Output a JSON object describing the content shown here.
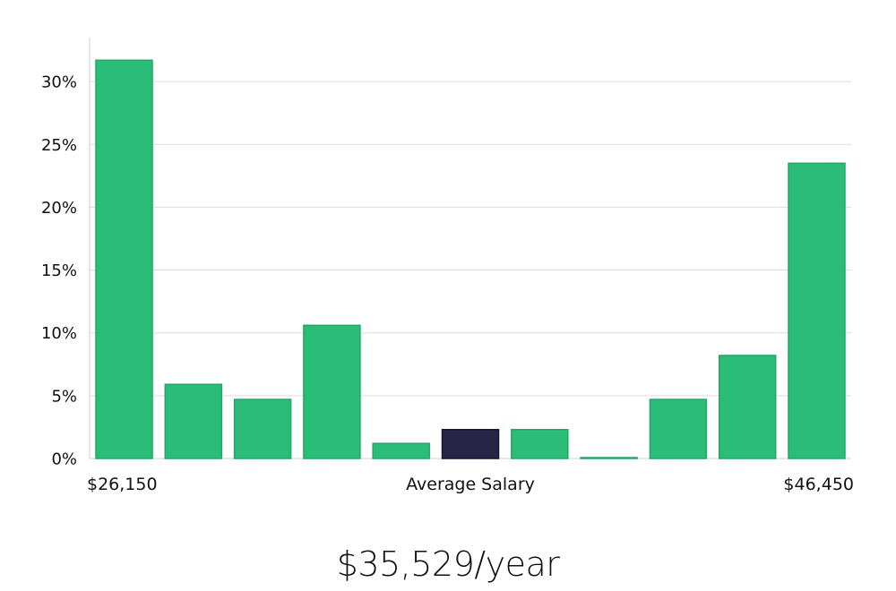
{
  "chart_data": {
    "type": "bar",
    "values": [
      31.7,
      5.9,
      4.7,
      10.6,
      1.2,
      2.3,
      2.3,
      0.05,
      4.7,
      8.2,
      23.5
    ],
    "highlight_index": 5,
    "y_ticks": [
      "0%",
      "5%",
      "10%",
      "15%",
      "20%",
      "25%",
      "30%"
    ],
    "y_tick_values": [
      0,
      5,
      10,
      15,
      20,
      25,
      30
    ],
    "ylim": [
      0,
      33.5
    ],
    "x_left_label": "$26,150",
    "x_center_label": "Average Salary",
    "x_right_label": "$46,450",
    "grid": true,
    "colors": {
      "bar": "#2bbd77",
      "bar_stroke": "#22a866",
      "highlight": "#272446",
      "highlight_stroke": "#16142e",
      "grid": "#dcdcdc",
      "axis": "#cfcfcf"
    }
  },
  "summary": {
    "salary": "$35,529/year"
  }
}
